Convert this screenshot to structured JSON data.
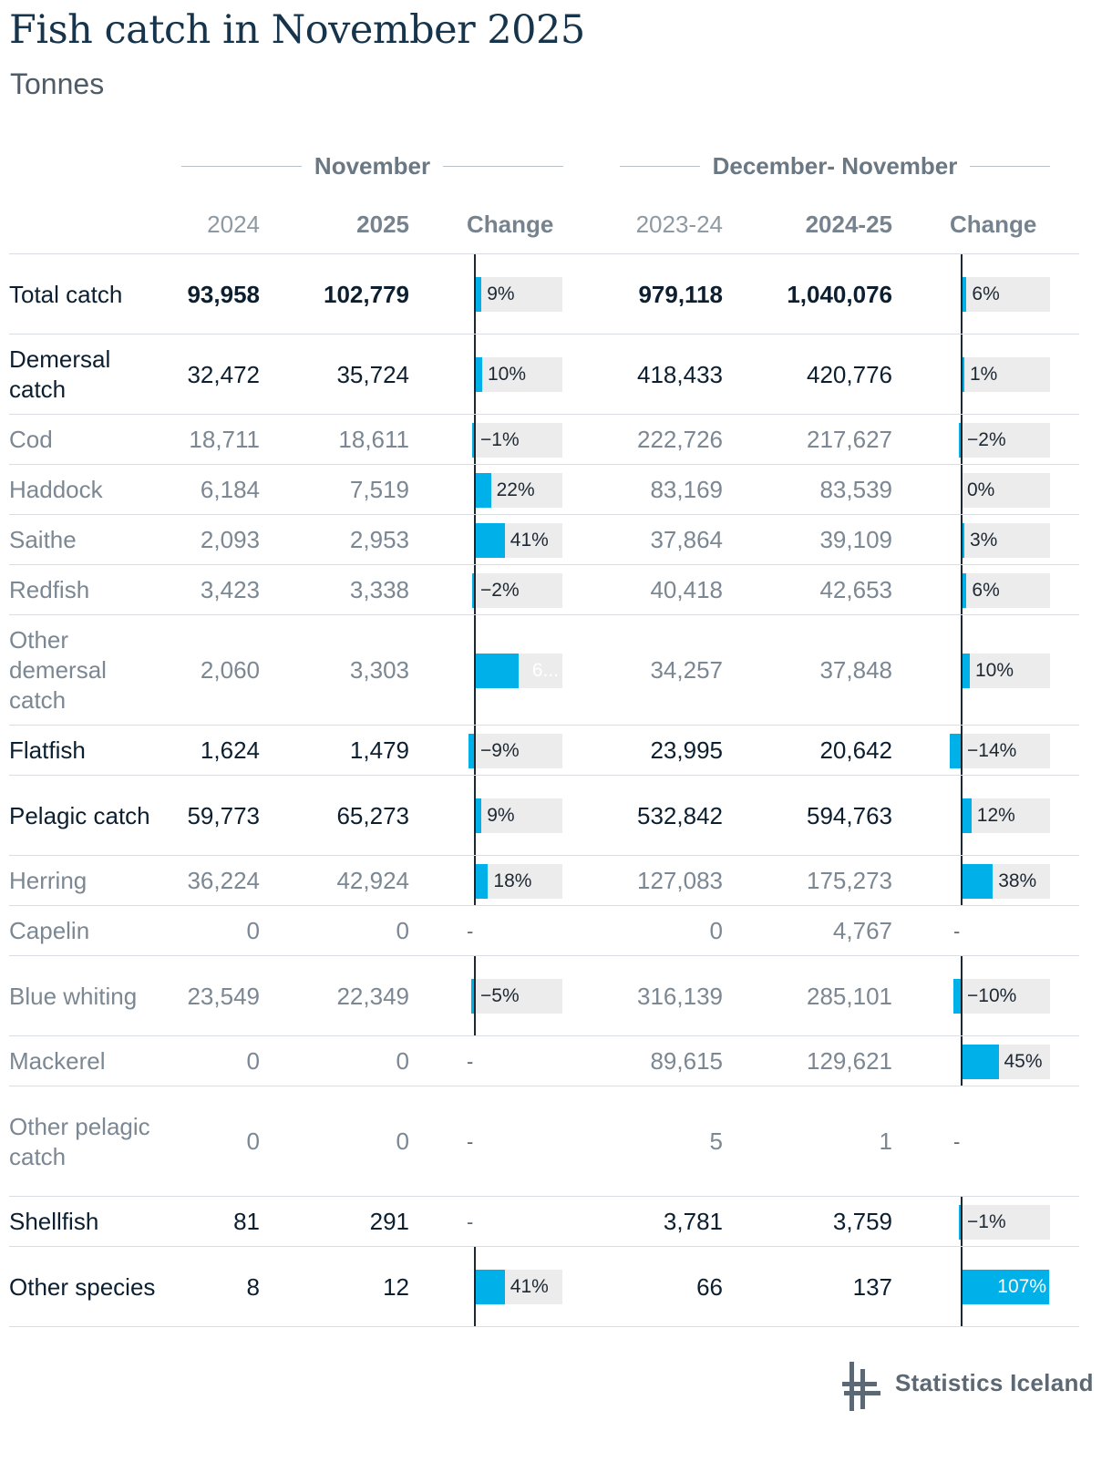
{
  "title": "Fish catch in November 2025",
  "subtitle": "Tonnes",
  "groups": {
    "left": "November",
    "right": "December- November"
  },
  "columns": [
    "2024",
    "2025",
    "Change",
    "2023-24",
    "2024-25",
    "Change"
  ],
  "colors": {
    "bar": "#00b0e8",
    "track": "#ececec",
    "axis": "#1d2833",
    "title": "#16344b"
  },
  "brand": {
    "name": "Statistics Iceland",
    "icon": "statistics-iceland-logo"
  },
  "chart_data": {
    "type": "table",
    "title": "Fish catch in November 2025",
    "subtitle": "Tonnes",
    "column_groups": [
      "November",
      "December- November"
    ],
    "columns": [
      "2024",
      "2025",
      "Change",
      "2023-24",
      "2024-25",
      "Change"
    ],
    "change_scale": {
      "november": [
        -10,
        65
      ],
      "dec_nov": [
        -14,
        107
      ]
    },
    "rows": [
      {
        "label": "Total catch",
        "style": "bold",
        "v2024": "93,958",
        "v2025": "102,779",
        "nov_change": 9,
        "nov_change_label": "9%",
        "v2324": "979,118",
        "v2425": "1,040,076",
        "dn_change": 6,
        "dn_change_label": "6%"
      },
      {
        "label": "Demersal catch",
        "style": "mid",
        "v2024": "32,472",
        "v2025": "35,724",
        "nov_change": 10,
        "nov_change_label": "10%",
        "v2324": "418,433",
        "v2425": "420,776",
        "dn_change": 1,
        "dn_change_label": "1%"
      },
      {
        "label": "Cod",
        "style": "sub",
        "v2024": "18,711",
        "v2025": "18,611",
        "nov_change": -1,
        "nov_change_label": "−1%",
        "v2324": "222,726",
        "v2425": "217,627",
        "dn_change": -2,
        "dn_change_label": "−2%"
      },
      {
        "label": "Haddock",
        "style": "sub",
        "v2024": "6,184",
        "v2025": "7,519",
        "nov_change": 22,
        "nov_change_label": "22%",
        "v2324": "83,169",
        "v2425": "83,539",
        "dn_change": 0,
        "dn_change_label": "0%"
      },
      {
        "label": "Saithe",
        "style": "sub",
        "v2024": "2,093",
        "v2025": "2,953",
        "nov_change": 41,
        "nov_change_label": "41%",
        "v2324": "37,864",
        "v2425": "39,109",
        "dn_change": 3,
        "dn_change_label": "3%"
      },
      {
        "label": "Redfish",
        "style": "sub",
        "v2024": "3,423",
        "v2025": "3,338",
        "nov_change": -2,
        "nov_change_label": "−2%",
        "v2324": "40,418",
        "v2425": "42,653",
        "dn_change": 6,
        "dn_change_label": "6%"
      },
      {
        "label": "Other demersal catch",
        "style": "sub",
        "v2024": "2,060",
        "v2025": "3,303",
        "nov_change": 60,
        "nov_change_label": "6...",
        "v2324": "34,257",
        "v2425": "37,848",
        "dn_change": 10,
        "dn_change_label": "10%"
      },
      {
        "label": "Flatfish",
        "style": "mid",
        "v2024": "1,624",
        "v2025": "1,479",
        "nov_change": -9,
        "nov_change_label": "−9%",
        "v2324": "23,995",
        "v2425": "20,642",
        "dn_change": -14,
        "dn_change_label": "−14%"
      },
      {
        "label": "Pelagic catch",
        "style": "mid",
        "v2024": "59,773",
        "v2025": "65,273",
        "nov_change": 9,
        "nov_change_label": "9%",
        "v2324": "532,842",
        "v2425": "594,763",
        "dn_change": 12,
        "dn_change_label": "12%"
      },
      {
        "label": "Herring",
        "style": "sub",
        "v2024": "36,224",
        "v2025": "42,924",
        "nov_change": 18,
        "nov_change_label": "18%",
        "v2324": "127,083",
        "v2425": "175,273",
        "dn_change": 38,
        "dn_change_label": "38%"
      },
      {
        "label": "Capelin",
        "style": "sub",
        "v2024": "0",
        "v2025": "0",
        "nov_change": null,
        "nov_change_label": "-",
        "v2324": "0",
        "v2425": "4,767",
        "dn_change": null,
        "dn_change_label": "-"
      },
      {
        "label": "Blue whiting",
        "style": "sub",
        "v2024": "23,549",
        "v2025": "22,349",
        "nov_change": -5,
        "nov_change_label": "−5%",
        "v2324": "316,139",
        "v2425": "285,101",
        "dn_change": -10,
        "dn_change_label": "−10%"
      },
      {
        "label": "Mackerel",
        "style": "sub",
        "v2024": "0",
        "v2025": "0",
        "nov_change": null,
        "nov_change_label": "-",
        "v2324": "89,615",
        "v2425": "129,621",
        "dn_change": 45,
        "dn_change_label": "45%"
      },
      {
        "label": "Other pelagic catch",
        "style": "sub",
        "v2024": "0",
        "v2025": "0",
        "nov_change": null,
        "nov_change_label": "-",
        "v2324": "5",
        "v2425": "1",
        "dn_change": null,
        "dn_change_label": "-"
      },
      {
        "label": "Shellfish",
        "style": "mid",
        "v2024": "81",
        "v2025": "291",
        "nov_change": null,
        "nov_change_label": "-",
        "v2324": "3,781",
        "v2425": "3,759",
        "dn_change": -1,
        "dn_change_label": "−1%"
      },
      {
        "label": "Other species",
        "style": "mid",
        "v2024": "8",
        "v2025": "12",
        "nov_change": 41,
        "nov_change_label": "41%",
        "v2324": "66",
        "v2425": "137",
        "dn_change": 107,
        "dn_change_label": "107%"
      }
    ]
  }
}
